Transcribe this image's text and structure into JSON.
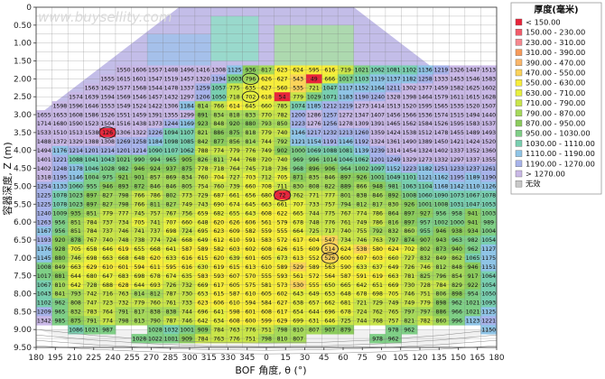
{
  "watermark": "www.buysellity.com",
  "chart_data": {
    "type": "heatmap",
    "title": "",
    "xlabel": "BOF 角度, θ (°)",
    "ylabel": "容器深度, Z (m)",
    "x_ticks": [
      "180",
      "195",
      "210",
      "225",
      "240",
      "255",
      "270",
      "285",
      "300",
      "315",
      "330",
      "345",
      "0",
      "15",
      "30",
      "45",
      "60",
      "75",
      "90",
      "105",
      "120",
      "135",
      "150",
      "165",
      "180"
    ],
    "y_ticks": [
      "0",
      "0.50",
      "1.00",
      "1.50",
      "2.00",
      "2.50",
      "3.00",
      "3.50",
      "4.00",
      "4.50",
      "5.00",
      "5.50",
      "6.00",
      "6.50",
      "7.00",
      "7.50",
      "8.00",
      "8.50",
      "9.00",
      "9.50"
    ],
    "ylim": [
      0,
      9.5
    ],
    "legend": {
      "title": "厚度(毫米)",
      "placement": "right",
      "items": [
        {
          "label": "< 150.00",
          "color": "#e8243a"
        },
        {
          "label": "150.00 - 230.00",
          "color": "#f25c6a"
        },
        {
          "label": "230.00 - 310.00",
          "color": "#f6888f"
        },
        {
          "label": "310.00 - 390.00",
          "color": "#f79a5a"
        },
        {
          "label": "390.00 - 470.00",
          "color": "#fab66a"
        },
        {
          "label": "470.00 - 550.00",
          "color": "#fbd35a"
        },
        {
          "label": "550.00 - 630.00",
          "color": "#f7ed3b"
        },
        {
          "label": "630.00 - 710.00",
          "color": "#e7f03f"
        },
        {
          "label": "710.00 - 790.00",
          "color": "#c9e54a"
        },
        {
          "label": "790.00 - 870.00",
          "color": "#a6d95a"
        },
        {
          "label": "870.00 - 950.00",
          "color": "#8ccc5c"
        },
        {
          "label": "950.00 - 1030.00",
          "color": "#7fcf86"
        },
        {
          "label": "1030.00 - 1110.00",
          "color": "#79cfb0"
        },
        {
          "label": "1110.00 - 1190.00",
          "color": "#8fc4e6"
        },
        {
          "label": "1190.00 - 1270.00",
          "color": "#a7b3ea"
        },
        {
          "label": "> 1270.00",
          "color": "#c9b8e6"
        },
        {
          "label": "无效",
          "color": "#c8c8c8"
        }
      ]
    },
    "rows": [
      {
        "z": 1.75,
        "start": 5,
        "values": [
          1550,
          1606,
          1557,
          1408,
          1496,
          1416,
          1308,
          1125,
          936,
          817,
          623,
          624,
          595,
          616,
          719,
          1021,
          1062,
          1081,
          1102,
          1136,
          1219,
          1326,
          1447,
          1513
        ]
      },
      {
        "z": 2.0,
        "start": 4,
        "values": [
          1555,
          1615,
          1601,
          1547,
          1519,
          1457,
          1320,
          1194,
          1003,
          796,
          626,
          627,
          543,
          49,
          666,
          1017,
          1103,
          1119,
          1137,
          1182,
          1258,
          1333,
          1453,
          1546,
          1583
        ]
      },
      {
        "z": 2.25,
        "start": 3,
        "values": [
          1563,
          1629,
          1577,
          1568,
          1544,
          1478,
          1337,
          1259,
          1057,
          775,
          635,
          627,
          560,
          535,
          721,
          1047,
          1117,
          1152,
          1164,
          1211,
          1302,
          1377,
          1459,
          1582,
          1625,
          1602
        ]
      },
      {
        "z": 2.5,
        "start": 2,
        "values": [
          1574,
          1639,
          1594,
          1569,
          1546,
          1457,
          1432,
          1297,
          1206,
          1050,
          718,
          702,
          618,
          54,
          779,
          1029,
          1071,
          1183,
          1190,
          1240,
          1328,
          1398,
          1464,
          1579,
          1611,
          1615,
          1628
        ]
      },
      {
        "z": 2.75,
        "start": 1,
        "values": [
          1598,
          1596,
          1646,
          1553,
          1549,
          1524,
          1422,
          1306,
          1184,
          814,
          766,
          614,
          645,
          660,
          785,
          1074,
          1185,
          1212,
          1219,
          1273,
          1414,
          1513,
          1520,
          1595,
          1565,
          1535,
          1520,
          1507
        ]
      },
      {
        "z": 3.0,
        "start": 0,
        "values": [
          1655,
          1653,
          1608,
          1586,
          1526,
          1551,
          1459,
          1391,
          1355,
          1299,
          891,
          834,
          818,
          833,
          770,
          782,
          1200,
          1286,
          1257,
          1272,
          1347,
          1407,
          1456,
          1566,
          1536,
          1574,
          1515,
          1494,
          1440
        ]
      },
      {
        "z": 3.25,
        "start": 0,
        "values": [
          1714,
          1680,
          1590,
          1523,
          1504,
          1516,
          1438,
          1373,
          1244,
          1169,
          923,
          848,
          920,
          880,
          793,
          850,
          1223,
          1276,
          1256,
          1278,
          1309,
          1391,
          1465,
          1562,
          1584,
          1526,
          1595,
          1583,
          1537
        ]
      },
      {
        "z": 3.5,
        "start": 0,
        "values": [
          1533,
          1510,
          1513,
          1538,
          126,
          1306,
          1322,
          1226,
          1094,
          1107,
          821,
          886,
          875,
          818,
          779,
          740,
          1146,
          1217,
          1232,
          1213,
          1260,
          1359,
          1424,
          1538,
          1512,
          1478,
          1455,
          1489,
          1493
        ]
      },
      {
        "z": 3.75,
        "start": 0,
        "values": [
          1488,
          1372,
          1329,
          1388,
          1308,
          1269,
          1258,
          1184,
          1098,
          1085,
          842,
          877,
          856,
          814,
          744,
          792,
          1121,
          1154,
          1191,
          1146,
          1192,
          1324,
          1361,
          1490,
          1389,
          1450,
          1421,
          1424,
          1520
        ]
      },
      {
        "z": 4.0,
        "start": 0,
        "values": [
          1494,
          1176,
          1214,
          1201,
          1214,
          1201,
          1214,
          1090,
          1107,
          1062,
          788,
          774,
          779,
          776,
          749,
          902,
          1000,
          1069,
          1088,
          1081,
          1139,
          1239,
          1314,
          1454,
          1324,
          1402,
          1337,
          1352,
          1360
        ]
      },
      {
        "z": 4.25,
        "start": 0,
        "values": [
          1401,
          1221,
          1088,
          1041,
          1043,
          1021,
          990,
          994,
          965,
          905,
          826,
          811,
          744,
          768,
          720,
          740,
          969,
          996,
          1014,
          1046,
          1062,
          1201,
          1249,
          1329,
          1273,
          1332,
          1297,
          1337,
          1355
        ]
      },
      {
        "z": 4.5,
        "start": 0,
        "values": [
          1402,
          1248,
          1178,
          1046,
          1028,
          982,
          946,
          924,
          937,
          875,
          778,
          718,
          764,
          745,
          718,
          736,
          968,
          896,
          906,
          964,
          1002,
          1097,
          1152,
          1223,
          1182,
          1251,
          1233,
          1237,
          1261
        ]
      },
      {
        "z": 4.75,
        "start": 0,
        "values": [
          1318,
          1195,
          1146,
          1004,
          975,
          921,
          901,
          857,
          869,
          834,
          760,
          704,
          727,
          703,
          712,
          705,
          871,
          835,
          846,
          897,
          926,
          1001,
          1049,
          1101,
          1121,
          1162,
          1195,
          1189,
          1190
        ]
      },
      {
        "z": 5.0,
        "start": 0,
        "values": [
          1254,
          1133,
          1060,
          955,
          946,
          893,
          872,
          846,
          846,
          805,
          754,
          760,
          739,
          660,
          708,
          711,
          830,
          808,
          822,
          889,
          866,
          948,
          981,
          1063,
          1104,
          1168,
          1142,
          1110,
          1126
        ]
      },
      {
        "z": 5.25,
        "start": 0,
        "values": [
          1225,
          1078,
          1023,
          897,
          827,
          798,
          766,
          786,
          802,
          773,
          729,
          687,
          661,
          656,
          680,
          72,
          762,
          771,
          777,
          801,
          838,
          846,
          892,
          1008,
          1060,
          1090,
          1073,
          1067,
          1078
        ]
      },
      {
        "z": 5.5,
        "start": 0,
        "values": [
          1225,
          1078,
          1023,
          897,
          827,
          798,
          766,
          811,
          827,
          749,
          743,
          690,
          674,
          645,
          663,
          661,
          707,
          733,
          757,
          794,
          812,
          817,
          830,
          926,
          1001,
          1008,
          1031,
          1047,
          1053
        ]
      },
      {
        "z": 5.75,
        "start": 0,
        "values": [
          1240,
          1009,
          935,
          851,
          779,
          777,
          745,
          757,
          767,
          756,
          659,
          682,
          655,
          643,
          608,
          622,
          665,
          744,
          775,
          767,
          774,
          786,
          864,
          897,
          927,
          956,
          958,
          941,
          1003
        ]
      },
      {
        "z": 6.0,
        "start": 0,
        "values": [
          1263,
          956,
          851,
          784,
          737,
          734,
          705,
          741,
          707,
          660,
          648,
          620,
          626,
          606,
          561,
          579,
          678,
          748,
          776,
          761,
          749,
          786,
          816,
          897,
          957,
          1002,
          1000,
          941,
          989
        ]
      },
      {
        "z": 6.25,
        "start": 0,
        "values": [
          1167,
          956,
          851,
          784,
          737,
          746,
          741,
          737,
          698,
          724,
          695,
          623,
          609,
          582,
          559,
          555,
          664,
          725,
          717,
          740,
          755,
          792,
          832,
          860,
          955,
          946,
          938,
          934,
          1004
        ]
      },
      {
        "z": 6.5,
        "start": 0,
        "values": [
          1193,
          920,
          878,
          767,
          740,
          748,
          738,
          774,
          724,
          668,
          649,
          612,
          610,
          591,
          583,
          572,
          617,
          604,
          547,
          734,
          746,
          763,
          797,
          874,
          907,
          943,
          963,
          982,
          1054
        ]
      },
      {
        "z": 6.75,
        "start": 0,
        "values": [
          1176,
          928,
          705,
          658,
          646,
          619,
          655,
          668,
          641,
          587,
          589,
          582,
          603,
          602,
          608,
          626,
          615,
          609,
          514,
          624,
          538,
          580,
          624,
          702,
          802,
          873,
          940,
          962,
          1127
        ]
      },
      {
        "z": 7.0,
        "start": 0,
        "values": [
          1145,
          880,
          746,
          698,
          663,
          668,
          648,
          620,
          633,
          616,
          615,
          620,
          639,
          601,
          605,
          673,
          613,
          552,
          526,
          600,
          607,
          603,
          660,
          727,
          832,
          849,
          862,
          1065,
          1175
        ]
      },
      {
        "z": 7.25,
        "start": 0,
        "values": [
          1008,
          849,
          663,
          629,
          610,
          601,
          594,
          611,
          595,
          616,
          630,
          619,
          615,
          613,
          610,
          589,
          529,
          589,
          563,
          590,
          633,
          637,
          649,
          726,
          746,
          812,
          848,
          946,
          1151
        ]
      },
      {
        "z": 7.5,
        "start": 0,
        "values": [
          1017,
          881,
          644,
          680,
          647,
          683,
          698,
          678,
          674,
          635,
          583,
          593,
          607,
          570,
          555,
          593,
          561,
          572,
          564,
          587,
          591,
          619,
          663,
          781,
          825,
          796,
          854,
          917,
          1064
        ]
      },
      {
        "z": 7.75,
        "start": 0,
        "values": [
          1067,
          810,
          642,
          728,
          688,
          628,
          644,
          693,
          726,
          732,
          669,
          617,
          605,
          575,
          581,
          573,
          530,
          555,
          650,
          665,
          642,
          651,
          669,
          730,
          728,
          784,
          829,
          922,
          1054
        ]
      },
      {
        "z": 8.0,
        "start": 0,
        "values": [
          1043,
          841,
          793,
          742,
          716,
          763,
          814,
          812,
          787,
          730,
          653,
          615,
          587,
          610,
          605,
          602,
          643,
          649,
          653,
          648,
          678,
          698,
          705,
          746,
          751,
          806,
          898,
          954,
          1050
        ]
      },
      {
        "z": 8.25,
        "start": 0,
        "values": [
          1102,
          962,
          808,
          747,
          723,
          732,
          779,
          760,
          761,
          733,
          623,
          606,
          610,
          594,
          584,
          627,
          638,
          657,
          662,
          681,
          721,
          729,
          749,
          749,
          779,
          898,
          962,
          1021,
          1093
        ]
      },
      {
        "z": 8.5,
        "start": 0,
        "values": [
          1209,
          965,
          832,
          783,
          764,
          791,
          817,
          838,
          838,
          744,
          696,
          641,
          598,
          601,
          608,
          617,
          654,
          644,
          696,
          678,
          724,
          762,
          765,
          797,
          797,
          886,
          966,
          1021,
          1125
        ]
      },
      {
        "z": 8.75,
        "start": 0,
        "values": [
          1342,
          985,
          875,
          791,
          774,
          798,
          813,
          790,
          787,
          746,
          642,
          634,
          608,
          600,
          599,
          629,
          699,
          631,
          646,
          725,
          744,
          768,
          757,
          821,
          782,
          860,
          996,
          1123,
          1221
        ]
      },
      {
        "z": 9.0,
        "start": 2,
        "values": [
          1086,
          1021,
          987,
          null,
          null,
          1028,
          1032,
          1001,
          909,
          784,
          763,
          776,
          751,
          798,
          810,
          807,
          907,
          879,
          null,
          null,
          978,
          962,
          null,
          null,
          null,
          null,
          1150
        ]
      },
      {
        "z": 9.25,
        "start": 6,
        "values": [
          1028,
          1022,
          1001,
          909,
          784,
          763,
          776,
          751,
          798,
          810,
          807,
          null,
          null,
          null,
          null,
          978,
          962
        ]
      }
    ],
    "circled_cells": [
      {
        "row": 1,
        "col": 13
      },
      {
        "row": 3,
        "col": 13
      },
      {
        "row": 7,
        "col": 4
      },
      {
        "row": 14,
        "col": 15
      },
      {
        "row": 20,
        "col": 18
      },
      {
        "row": 21,
        "col": 18
      }
    ]
  }
}
